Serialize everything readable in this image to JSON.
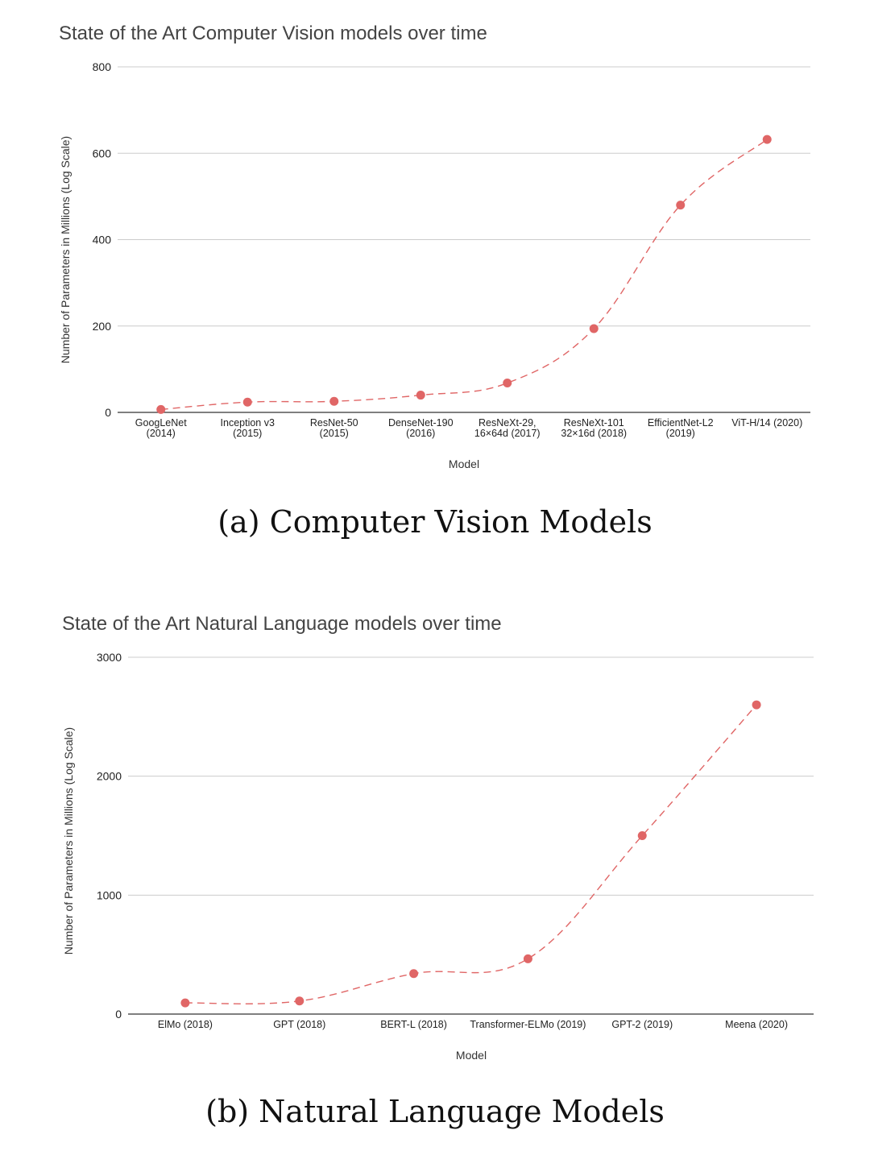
{
  "chart_data": [
    {
      "type": "line",
      "title": "State of the Art Computer Vision models over time",
      "xlabel": "Model",
      "ylabel": "Number of Parameters in Millions (Log Scale)",
      "ylim": [
        0,
        800
      ],
      "yticks": [
        0,
        200,
        400,
        600,
        800
      ],
      "grid": true,
      "legend": "none",
      "categories": [
        [
          "GoogLeNet",
          "(2014)"
        ],
        [
          "Inception v3",
          "(2015)"
        ],
        [
          "ResNet-50",
          "(2015)"
        ],
        [
          "DenseNet-190",
          "(2016)"
        ],
        [
          "ResNeXt-29,",
          "16×64d (2017)"
        ],
        [
          "ResNeXt-101",
          "32×16d (2018)"
        ],
        [
          "EfficientNet-L2",
          "(2019)"
        ],
        [
          "ViT-H/14 (2020)"
        ]
      ],
      "series": [
        {
          "values": [
            6.8,
            23.8,
            25.6,
            40,
            68,
            194,
            480,
            632
          ],
          "color": "#e06666"
        }
      ]
    },
    {
      "type": "line",
      "title": "State of the Art Natural Language models over time",
      "xlabel": "Model",
      "ylabel": "Number of Parameters in Millions (Log Scale)",
      "ylim": [
        0,
        3000
      ],
      "yticks": [
        0,
        1000,
        2000,
        3000
      ],
      "grid": true,
      "legend": "none",
      "categories": [
        [
          "ElMo (2018)"
        ],
        [
          "GPT (2018)"
        ],
        [
          "BERT-L (2018)"
        ],
        [
          "Transformer-ELMo (2019)"
        ],
        [
          "GPT-2 (2019)"
        ],
        [
          "Meena (2020)"
        ]
      ],
      "series": [
        {
          "values": [
            94,
            110,
            340,
            465,
            1500,
            2600
          ],
          "color": "#e06666"
        }
      ]
    }
  ],
  "captions": {
    "cv": "(a) Computer Vision Models",
    "nl": "(b) Natural Language Models"
  }
}
